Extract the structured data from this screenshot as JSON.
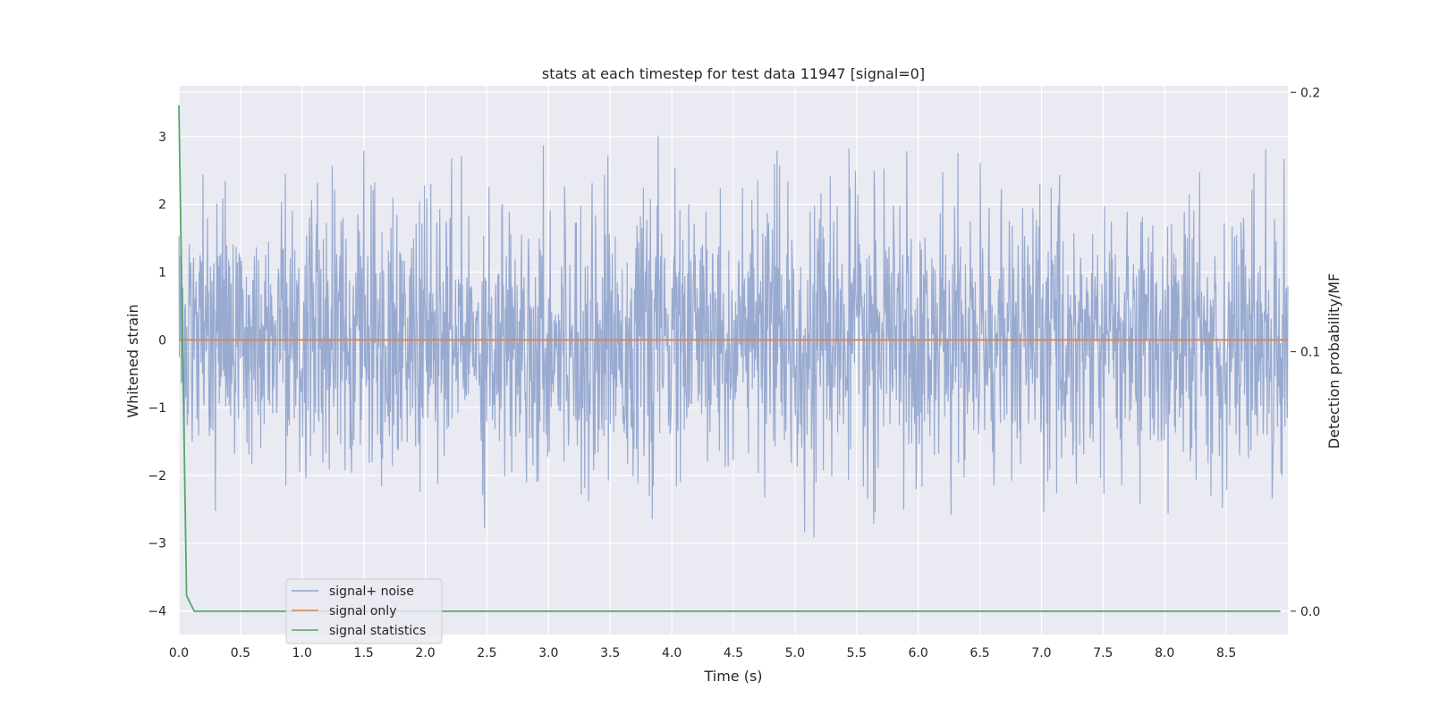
{
  "chart_data": {
    "type": "line",
    "title": "stats at each timestep for test data 11947 [signal=0]",
    "xlabel": "Time (s)",
    "ylabel": "Whitened strain",
    "ylabel_right": "Detection probability/MF",
    "xlim": [
      0,
      9
    ],
    "ylim": [
      -4.35,
      3.75
    ],
    "ylim_right": [
      -0.009,
      0.2025
    ],
    "xticks": [
      0.0,
      0.5,
      1.0,
      1.5,
      2.0,
      2.5,
      3.0,
      3.5,
      4.0,
      4.5,
      5.0,
      5.5,
      6.0,
      6.5,
      7.0,
      7.5,
      8.0,
      8.5
    ],
    "yticks": [
      -4,
      -3,
      -2,
      -1,
      0,
      1,
      2,
      3
    ],
    "yticks_right": [
      0.0,
      0.1,
      0.2
    ],
    "grid": true,
    "legend_position": "lower-left",
    "series": [
      {
        "name": "signal+ noise",
        "axis": "left",
        "color": "#8fa3cc",
        "noise": {
          "seed": 11947,
          "n": 2250,
          "sigma": 1.0,
          "max": 3.45,
          "min": -3.5
        }
      },
      {
        "name": "signal only",
        "axis": "left",
        "color": "#dd8452",
        "x": [
          0,
          9
        ],
        "values": [
          0,
          0
        ]
      },
      {
        "name": "signal statistics",
        "axis": "right",
        "color": "#55a868",
        "x": [
          0,
          0.0625,
          0.125,
          0.25,
          0.5,
          1,
          2,
          3,
          4,
          5,
          6,
          7,
          8,
          8.94
        ],
        "values": [
          0.195,
          0.006,
          0.0,
          0.0,
          0.0,
          0.0,
          0.0,
          0.0,
          0.0,
          0.0,
          0.0,
          0.0,
          0.0,
          0.0
        ]
      }
    ]
  }
}
